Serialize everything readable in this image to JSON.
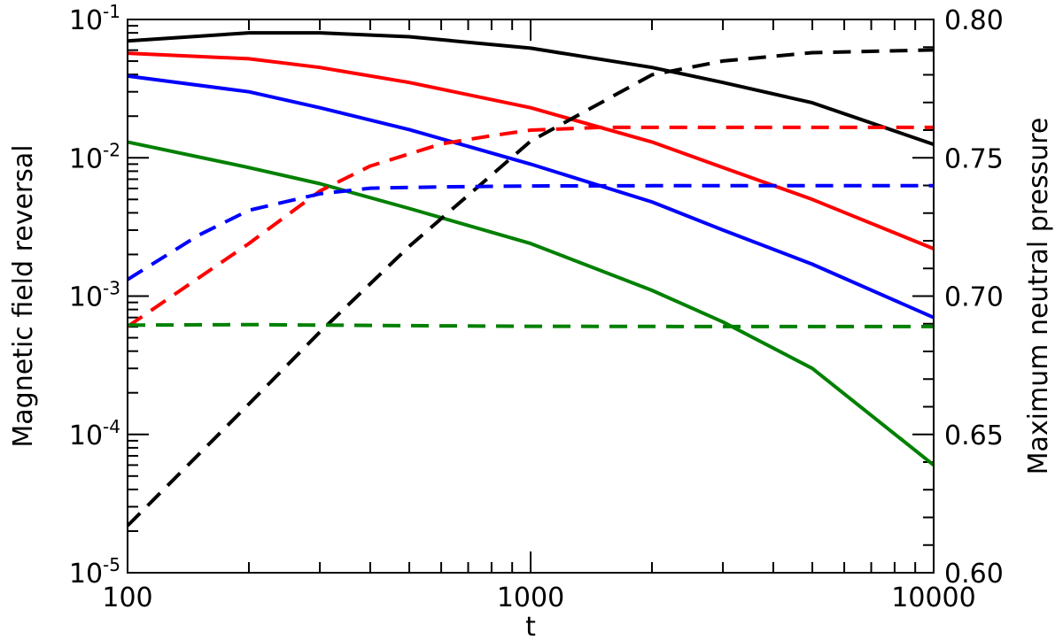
{
  "chart_data": {
    "type": "line",
    "x_axis": {
      "label": "t",
      "scale": "log",
      "range": [
        100,
        10000
      ],
      "ticks": [
        {
          "value": 100,
          "label": "100"
        },
        {
          "value": 1000,
          "label": "1000"
        },
        {
          "value": 10000,
          "label": "10000"
        }
      ]
    },
    "y_left": {
      "label": "Magnetic field reversal",
      "scale": "log",
      "range": [
        1e-05,
        0.1
      ],
      "ticks": [
        {
          "value": 0.1,
          "base": "10",
          "exp": "-1"
        },
        {
          "value": 0.01,
          "base": "10",
          "exp": "-2"
        },
        {
          "value": 0.001,
          "base": "10",
          "exp": "-3"
        },
        {
          "value": 0.0001,
          "base": "10",
          "exp": "-4"
        },
        {
          "value": 1e-05,
          "base": "10",
          "exp": "-5"
        }
      ]
    },
    "y_right": {
      "label": "Maximum neutral pressure",
      "scale": "linear",
      "range": [
        0.6,
        0.8
      ],
      "ticks": [
        {
          "value": 0.8,
          "label": "0.80"
        },
        {
          "value": 0.75,
          "label": "0.75"
        },
        {
          "value": 0.7,
          "label": "0.70"
        },
        {
          "value": 0.65,
          "label": "0.65"
        },
        {
          "value": 0.6,
          "label": "0.60"
        }
      ]
    },
    "series": [
      {
        "axis": "left",
        "color": "#000000",
        "dashed": false,
        "x": [
          100,
          200,
          300,
          500,
          1000,
          2000,
          3000,
          5000,
          10000
        ],
        "y": [
          0.07,
          0.08,
          0.08,
          0.075,
          0.062,
          0.045,
          0.035,
          0.025,
          0.0125
        ]
      },
      {
        "axis": "left",
        "color": "#ff0000",
        "dashed": false,
        "x": [
          100,
          200,
          300,
          500,
          1000,
          2000,
          3000,
          5000,
          10000
        ],
        "y": [
          0.057,
          0.052,
          0.045,
          0.035,
          0.023,
          0.013,
          0.0085,
          0.005,
          0.0022
        ]
      },
      {
        "axis": "left",
        "color": "#0000ff",
        "dashed": false,
        "x": [
          100,
          200,
          300,
          500,
          1000,
          2000,
          3000,
          5000,
          10000
        ],
        "y": [
          0.039,
          0.03,
          0.023,
          0.016,
          0.009,
          0.0048,
          0.003,
          0.0017,
          0.0007
        ]
      },
      {
        "axis": "left",
        "color": "#008000",
        "dashed": false,
        "x": [
          100,
          200,
          300,
          500,
          1000,
          2000,
          3000,
          5000,
          10000
        ],
        "y": [
          0.013,
          0.0085,
          0.0065,
          0.0043,
          0.0024,
          0.0011,
          0.00065,
          0.0003,
          6e-05
        ]
      },
      {
        "axis": "right",
        "color": "#000000",
        "dashed": true,
        "x": [
          100,
          200,
          300,
          500,
          1000,
          2000,
          3000,
          5000,
          10000
        ],
        "y": [
          0.617,
          0.661,
          0.687,
          0.718,
          0.756,
          0.78,
          0.785,
          0.788,
          0.789
        ]
      },
      {
        "axis": "right",
        "color": "#ff0000",
        "dashed": true,
        "x": [
          100,
          200,
          300,
          400,
          600,
          800,
          1000,
          1500,
          2000,
          5000,
          10000
        ],
        "y": [
          0.689,
          0.719,
          0.738,
          0.747,
          0.755,
          0.758,
          0.76,
          0.761,
          0.761,
          0.761,
          0.761
        ]
      },
      {
        "axis": "right",
        "color": "#0000ff",
        "dashed": true,
        "x": [
          100,
          150,
          200,
          300,
          400,
          600,
          1000,
          2000,
          5000,
          10000
        ],
        "y": [
          0.706,
          0.722,
          0.731,
          0.737,
          0.739,
          0.7395,
          0.7398,
          0.7399,
          0.7399,
          0.7399
        ]
      },
      {
        "axis": "right",
        "color": "#008000",
        "dashed": true,
        "x": [
          100,
          200,
          500,
          1000,
          3000,
          10000
        ],
        "y": [
          0.6895,
          0.6897,
          0.6893,
          0.6891,
          0.689,
          0.689
        ]
      }
    ]
  }
}
